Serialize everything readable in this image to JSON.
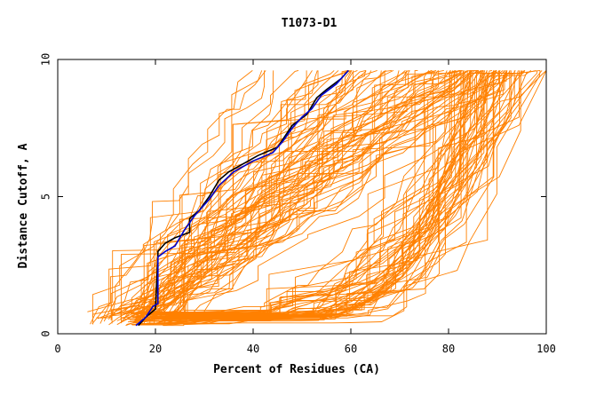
{
  "chart_data": {
    "type": "line",
    "title": "T1073-D1",
    "xlabel": "Percent of Residues (CA)",
    "ylabel": "Distance Cutoff, A",
    "xlim": [
      0,
      100
    ],
    "ylim": [
      0,
      10
    ],
    "x_ticks": [
      0,
      20,
      40,
      60,
      80,
      100
    ],
    "y_ticks": [
      0,
      5,
      10
    ],
    "grid": false,
    "legend": "none",
    "colors": {
      "background_series": "#ff8000",
      "highlight_1": "#000000",
      "highlight_2": "#0000cc"
    },
    "highlight_series": [
      {
        "color": "#000000",
        "x": [
          16.5,
          18,
          20,
          20.5,
          20.5,
          22,
          24,
          27,
          27,
          29,
          31,
          33,
          35,
          38,
          41,
          45,
          48,
          49.5,
          51,
          53,
          55,
          58,
          59.5
        ],
        "y": [
          0.3,
          0.6,
          0.9,
          2.8,
          3.0,
          3.3,
          3.5,
          3.7,
          4.2,
          4.5,
          5.0,
          5.6,
          5.9,
          6.2,
          6.5,
          6.8,
          7.6,
          7.8,
          8.0,
          8.6,
          8.9,
          9.3,
          9.6
        ]
      },
      {
        "color": "#0000cc",
        "x": [
          16,
          18,
          19.5,
          20.5,
          20.5,
          22,
          24,
          26,
          28,
          31,
          33,
          36,
          40,
          44,
          46,
          48,
          50,
          52,
          54,
          57,
          59.5
        ],
        "y": [
          0.3,
          0.6,
          1.0,
          1.1,
          2.8,
          3.0,
          3.2,
          3.8,
          4.3,
          4.9,
          5.4,
          5.9,
          6.3,
          6.6,
          7.0,
          7.5,
          7.9,
          8.2,
          8.7,
          9.1,
          9.6
        ]
      }
    ],
    "background_series_visual": {
      "count": 130,
      "color": "#ff8000",
      "x_range": [
        6,
        100
      ],
      "y_range": [
        0.3,
        9.6
      ],
      "note_shape": "three clusters: steep curves rising near 15-45, mid curves reaching y 3-6 by x 60-100, flat curves staying below y 3 until x 80-100"
    }
  }
}
